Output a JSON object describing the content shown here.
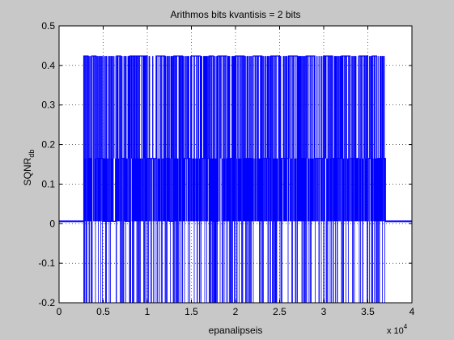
{
  "chart_data": {
    "type": "line",
    "title": "Arithmos bits kvantisis = 2 bits",
    "xlabel": "epanalipseis",
    "ylabel_main": "SQNR",
    "ylabel_sub": "db",
    "x_multiplier_base": "x 10",
    "x_multiplier_exp": "4",
    "xlim": [
      0,
      40000
    ],
    "ylim": [
      -0.2,
      0.5
    ],
    "xticks": [
      0,
      5000,
      10000,
      15000,
      20000,
      25000,
      30000,
      35000,
      40000
    ],
    "xtick_labels": [
      "0",
      "0.5",
      "1",
      "1.5",
      "2",
      "2.5",
      "3",
      "3.5",
      "4"
    ],
    "yticks": [
      -0.2,
      -0.1,
      0,
      0.1,
      0.2,
      0.3,
      0.4,
      0.5
    ],
    "ytick_labels": [
      "-0.2",
      "-0.1",
      "0",
      "0.1",
      "0.2",
      "0.3",
      "0.4",
      "0.5"
    ],
    "grid": true,
    "series": [
      {
        "color": "#0000ff",
        "levels": [
          0.424,
          0.165,
          0.006,
          -0.2
        ],
        "baseline": 0.006,
        "active_range": [
          2800,
          37000
        ],
        "x": [
          0,
          2800,
          3300,
          3700,
          4200,
          5000,
          6500,
          7000,
          7500,
          8000,
          9000,
          10000,
          11000,
          12000,
          12500,
          13000,
          14000,
          15000,
          16000,
          17000,
          17500,
          18000,
          19000,
          20000,
          21000,
          22000,
          23000,
          24000,
          25000,
          26000,
          27000,
          28000,
          29000,
          30000,
          31000,
          32000,
          33000,
          34000,
          35000,
          35500,
          36000,
          37000,
          40000
        ],
        "y": [
          0.006,
          0.424,
          0.165,
          0.424,
          0.165,
          0.006,
          0.424,
          0.165,
          0.006,
          0.424,
          0.424,
          0.165,
          0.424,
          0.165,
          0.006,
          0.424,
          0.165,
          0.424,
          0.165,
          0.424,
          0.006,
          0.424,
          0.165,
          0.424,
          0.165,
          0.424,
          0.165,
          0.424,
          0.165,
          0.424,
          0.165,
          0.424,
          0.165,
          0.424,
          0.165,
          0.424,
          0.165,
          0.424,
          0.165,
          0.424,
          0.165,
          0.006,
          0.006
        ]
      }
    ]
  }
}
